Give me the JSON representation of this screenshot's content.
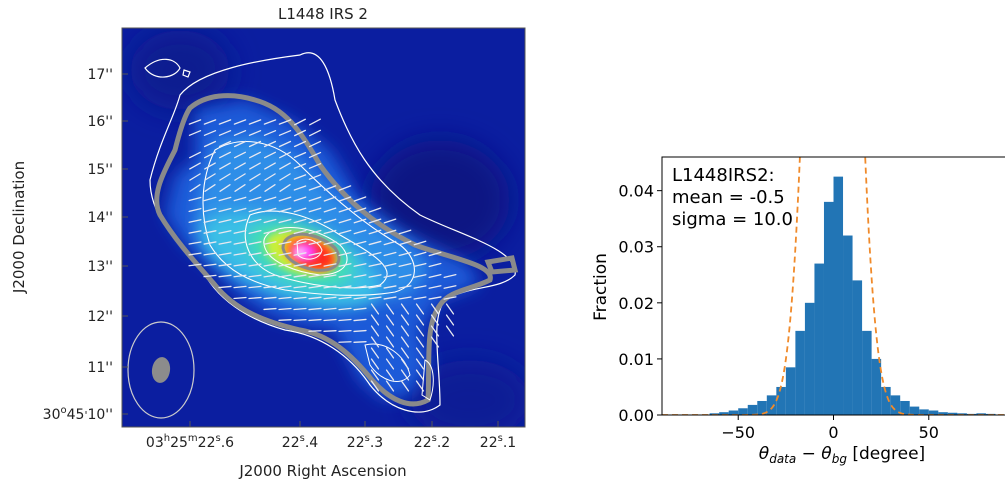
{
  "chart_data": [
    {
      "type": "heatmap",
      "title": "L1448 IRS 2",
      "xlabel": "J2000 Right Ascension",
      "ylabel": "J2000 Declination",
      "x_ticks": [
        {
          "h": "03",
          "m": "25",
          "s": "22",
          "f": ".6"
        },
        {
          "s": "22",
          "f": ".4"
        },
        {
          "s": "22",
          "f": ".3"
        },
        {
          "s": "22",
          "f": ".2"
        },
        {
          "s": "22",
          "f": ".1"
        }
      ],
      "y_ticks": [
        "17''",
        "16''",
        "15''",
        "14''",
        "13''",
        "12''",
        "11''"
      ],
      "y_origin_tick": {
        "deg": "30",
        "min": "45",
        "sec": "10''"
      },
      "colormap": "rainbow",
      "contours": true,
      "polarization_segments": true
    },
    {
      "type": "bar",
      "xlabel_parts": {
        "theta": "θ",
        "sub1": "data",
        "minus": " − ",
        "sub2": "bg",
        "unit": " [degree]"
      },
      "ylabel": "Fraction",
      "xlim": [
        -90,
        90
      ],
      "ylim": [
        0,
        0.046
      ],
      "x_ticks": [
        -50,
        0,
        50
      ],
      "x_tick_labels": [
        "−50",
        "0",
        "50"
      ],
      "y_ticks": [
        0,
        0.01,
        0.02,
        0.03,
        0.04
      ],
      "y_tick_labels": [
        "0.00",
        "0.01",
        "0.02",
        "0.03",
        "0.04"
      ],
      "bin_width": 5,
      "bins": [
        {
          "x0": -65,
          "y": 0.0003
        },
        {
          "x0": -60,
          "y": 0.0005
        },
        {
          "x0": -55,
          "y": 0.0008
        },
        {
          "x0": -50,
          "y": 0.0012
        },
        {
          "x0": -45,
          "y": 0.0018
        },
        {
          "x0": -40,
          "y": 0.0025
        },
        {
          "x0": -35,
          "y": 0.0035
        },
        {
          "x0": -30,
          "y": 0.005
        },
        {
          "x0": -25,
          "y": 0.0085
        },
        {
          "x0": -20,
          "y": 0.015
        },
        {
          "x0": -15,
          "y": 0.02
        },
        {
          "x0": -10,
          "y": 0.027
        },
        {
          "x0": -5,
          "y": 0.038
        },
        {
          "x0": 0,
          "y": 0.0425
        },
        {
          "x0": 5,
          "y": 0.032
        },
        {
          "x0": 10,
          "y": 0.024
        },
        {
          "x0": 15,
          "y": 0.015
        },
        {
          "x0": 20,
          "y": 0.01
        },
        {
          "x0": 25,
          "y": 0.005
        },
        {
          "x0": 30,
          "y": 0.0035
        },
        {
          "x0": 35,
          "y": 0.0025
        },
        {
          "x0": 40,
          "y": 0.0015
        },
        {
          "x0": 45,
          "y": 0.001
        },
        {
          "x0": 50,
          "y": 0.0008
        },
        {
          "x0": 55,
          "y": 0.0005
        },
        {
          "x0": 60,
          "y": 0.0004
        },
        {
          "x0": 65,
          "y": 0.0003
        },
        {
          "x0": 70,
          "y": 0.0002
        },
        {
          "x0": 75,
          "y": 0.0003
        },
        {
          "x0": 80,
          "y": 0.0002
        }
      ],
      "gaussian_fit": {
        "mean": -0.5,
        "sigma": 10.0
      },
      "bar_color": "#2275b5",
      "fit_color": "#f08a2a",
      "annotation": [
        "L1448IRS2:",
        "mean = -0.5",
        "sigma = 10.0"
      ]
    }
  ]
}
